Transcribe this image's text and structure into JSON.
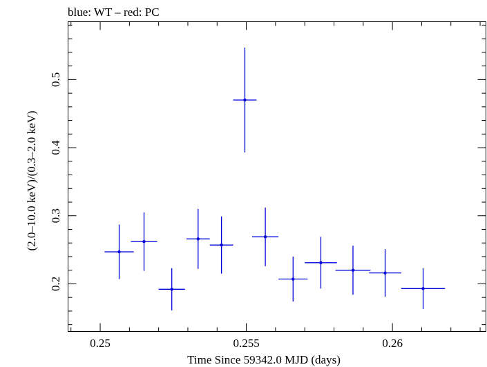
{
  "chart_data": {
    "type": "scatter",
    "title": "blue: WT – red: PC",
    "xlabel": "Time Since 59342.0 MJD (days)",
    "ylabel": "(2.0–10.0 keV)/(0.3–2.0 keV)",
    "xlim": [
      0.2489,
      0.2632
    ],
    "ylim": [
      0.13,
      0.585
    ],
    "x_ticks": [
      0.25,
      0.255,
      0.26
    ],
    "x_tick_labels": [
      "0.25",
      "0.255",
      "0.26"
    ],
    "y_ticks": [
      0.2,
      0.3,
      0.4,
      0.5
    ],
    "y_tick_labels": [
      "0.2",
      "0.3",
      "0.4",
      "0.5"
    ],
    "grid": false,
    "series": [
      {
        "color": "#0000dd",
        "points": [
          {
            "x": 0.25065,
            "xerr": 0.0005,
            "y": 0.247,
            "yerr": 0.04
          },
          {
            "x": 0.2515,
            "xerr": 0.00045,
            "y": 0.262,
            "yerr": 0.043
          },
          {
            "x": 0.25245,
            "xerr": 0.00045,
            "y": 0.192,
            "yerr": 0.031
          },
          {
            "x": 0.25335,
            "xerr": 0.0004,
            "y": 0.266,
            "yerr": 0.044
          },
          {
            "x": 0.25415,
            "xerr": 0.0004,
            "y": 0.257,
            "yerr": 0.042
          },
          {
            "x": 0.25495,
            "xerr": 0.0004,
            "y": 0.47,
            "yerr": 0.077
          },
          {
            "x": 0.25565,
            "xerr": 0.00045,
            "y": 0.269,
            "yerr": 0.043
          },
          {
            "x": 0.2566,
            "xerr": 0.0005,
            "y": 0.207,
            "yerr": 0.033
          },
          {
            "x": 0.25755,
            "xerr": 0.00055,
            "y": 0.231,
            "yerr": 0.038
          },
          {
            "x": 0.25865,
            "xerr": 0.0006,
            "y": 0.22,
            "yerr": 0.036
          },
          {
            "x": 0.25975,
            "xerr": 0.00055,
            "y": 0.216,
            "yerr": 0.035
          },
          {
            "x": 0.26105,
            "xerr": 0.00075,
            "y": 0.193,
            "yerr": 0.03
          }
        ]
      }
    ]
  }
}
